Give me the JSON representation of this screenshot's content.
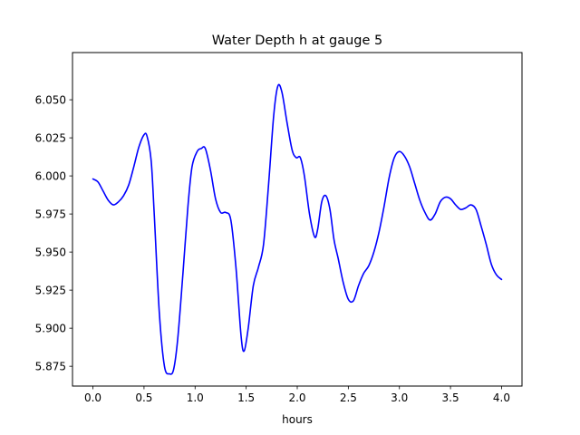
{
  "chart_data": {
    "type": "line",
    "title": "Water Depth h at gauge 5",
    "xlabel": "hours",
    "ylabel": "",
    "xlim": [
      -0.2,
      4.2
    ],
    "ylim": [
      5.862,
      6.081
    ],
    "x_ticks": [
      0.0,
      0.5,
      1.0,
      1.5,
      2.0,
      2.5,
      3.0,
      3.5,
      4.0
    ],
    "x_tick_labels": [
      "0.0",
      "0.5",
      "1.0",
      "1.5",
      "2.0",
      "2.5",
      "3.0",
      "3.5",
      "4.0"
    ],
    "y_ticks": [
      5.875,
      5.9,
      5.925,
      5.95,
      5.975,
      6.0,
      6.025,
      6.05
    ],
    "y_tick_labels": [
      "5.875",
      "5.900",
      "5.925",
      "5.950",
      "5.975",
      "6.000",
      "6.025",
      "6.050"
    ],
    "grid": false,
    "series": [
      {
        "color": "#0000ff",
        "x": [
          0.0,
          0.05,
          0.1,
          0.15,
          0.2,
          0.25,
          0.3,
          0.35,
          0.4,
          0.45,
          0.5,
          0.53,
          0.57,
          0.6,
          0.65,
          0.7,
          0.75,
          0.79,
          0.83,
          0.88,
          0.93,
          0.97,
          1.02,
          1.06,
          1.1,
          1.15,
          1.2,
          1.25,
          1.3,
          1.35,
          1.4,
          1.45,
          1.48,
          1.52,
          1.57,
          1.62,
          1.67,
          1.72,
          1.77,
          1.81,
          1.85,
          1.9,
          1.95,
          1.99,
          2.03,
          2.07,
          2.12,
          2.17,
          2.2,
          2.24,
          2.28,
          2.32,
          2.36,
          2.4,
          2.45,
          2.5,
          2.55,
          2.6,
          2.65,
          2.7,
          2.75,
          2.8,
          2.85,
          2.9,
          2.95,
          3.0,
          3.05,
          3.1,
          3.15,
          3.2,
          3.25,
          3.3,
          3.35,
          3.4,
          3.45,
          3.5,
          3.55,
          3.6,
          3.65,
          3.7,
          3.75,
          3.8,
          3.85,
          3.9,
          3.95,
          4.0
        ],
        "y": [
          5.998,
          5.996,
          5.99,
          5.984,
          5.981,
          5.983,
          5.987,
          5.994,
          6.006,
          6.019,
          6.027,
          6.026,
          6.01,
          5.975,
          5.91,
          5.875,
          5.87,
          5.873,
          5.893,
          5.935,
          5.98,
          6.006,
          6.016,
          6.018,
          6.018,
          6.004,
          5.985,
          5.976,
          5.976,
          5.971,
          5.94,
          5.895,
          5.885,
          5.9,
          5.928,
          5.94,
          5.955,
          5.995,
          6.04,
          6.059,
          6.055,
          6.035,
          6.017,
          6.012,
          6.012,
          6.0,
          5.975,
          5.96,
          5.965,
          5.983,
          5.987,
          5.978,
          5.958,
          5.946,
          5.93,
          5.919,
          5.918,
          5.928,
          5.936,
          5.941,
          5.95,
          5.963,
          5.98,
          5.999,
          6.012,
          6.016,
          6.013,
          6.006,
          5.995,
          5.984,
          5.976,
          5.971,
          5.975,
          5.983,
          5.986,
          5.985,
          5.981,
          5.978,
          5.979,
          5.981,
          5.978,
          5.967,
          5.955,
          5.942,
          5.935,
          5.932
        ]
      }
    ]
  }
}
